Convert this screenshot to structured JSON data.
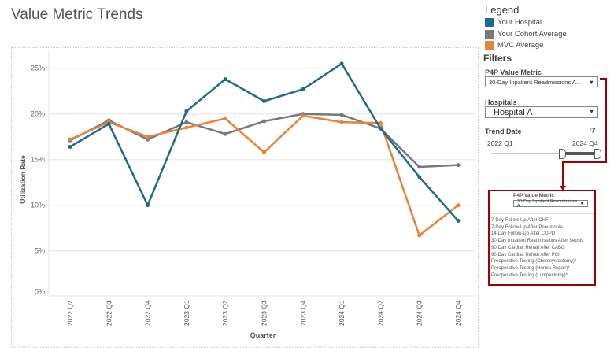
{
  "title": "Value Metric Trends",
  "legend": {
    "title": "Legend",
    "items": [
      {
        "label": "Your Hospital",
        "color": "#1f6b8a"
      },
      {
        "label": "Your Cohort Average",
        "color": "#76797c"
      },
      {
        "label": "MVC Average",
        "color": "#e8833a"
      }
    ]
  },
  "filters": {
    "title": "Filters",
    "metric_label": "P4P Value Metric",
    "metric_value": "30-Day Inpatient Readmissions A...",
    "hospitals_label": "Hospitals",
    "hospitals_value": "Hospital A",
    "hospitals_more": "..",
    "trend_label": "Trend Date",
    "trend_start": "2022 Q1",
    "trend_end": "2024 Q4",
    "clear_filter_icon": "filter-clear-icon"
  },
  "callout": {
    "metric_label": "P4P Value Metric",
    "metric_value": "30-Day Inpatient Readmissions A...",
    "options": [
      "7-Day Follow-Up After CHF",
      "7-Day Follow-Up After Pneumonia",
      "14-Day Follow-Up After COPD",
      "30-Day Inpatient Readmissions After Sepsis",
      "90-Day Cardiac Rehab After CABG",
      "90-Day Cardiac Rehab After PCI",
      "Preoperative Testing (Cholecystectomy)*",
      "Preoperative Testing (Hernia Repair)*",
      "Preoperative Testing (Lumpectomy)*"
    ],
    "accent": "#a00000"
  },
  "chart_data": {
    "type": "line",
    "xlabel": "Quarter",
    "ylabel": "Utilization Rate",
    "ylim": [
      0,
      26
    ],
    "yticks": [
      "0%",
      "5%",
      "10%",
      "15%",
      "20%",
      "25%"
    ],
    "ytick_values": [
      0,
      5,
      10,
      15,
      20,
      25
    ],
    "grid": true,
    "categories": [
      "2022 Q2",
      "2022 Q3",
      "2022 Q4",
      "2023 Q1",
      "2023 Q2",
      "2023 Q3",
      "2023 Q4",
      "2024 Q1",
      "2024 Q2",
      "2024 Q3",
      "2024 Q4"
    ],
    "series": [
      {
        "name": "Your Cohort Average",
        "color": "#76797c",
        "values": [
          17.1,
          19.3,
          17.2,
          19.1,
          17.8,
          19.2,
          20.0,
          19.9,
          18.4,
          14.2,
          14.4
        ]
      },
      {
        "name": "MVC Average",
        "color": "#e8833a",
        "values": [
          17.2,
          19.1,
          17.5,
          18.5,
          19.5,
          15.8,
          19.8,
          19.1,
          19.0,
          6.7,
          10.0
        ]
      },
      {
        "name": "Your Hospital",
        "color": "#1f6b8a",
        "values": [
          16.4,
          18.9,
          10.0,
          20.3,
          23.8,
          21.4,
          22.7,
          25.5,
          18.4,
          13.1,
          8.3
        ]
      }
    ]
  }
}
